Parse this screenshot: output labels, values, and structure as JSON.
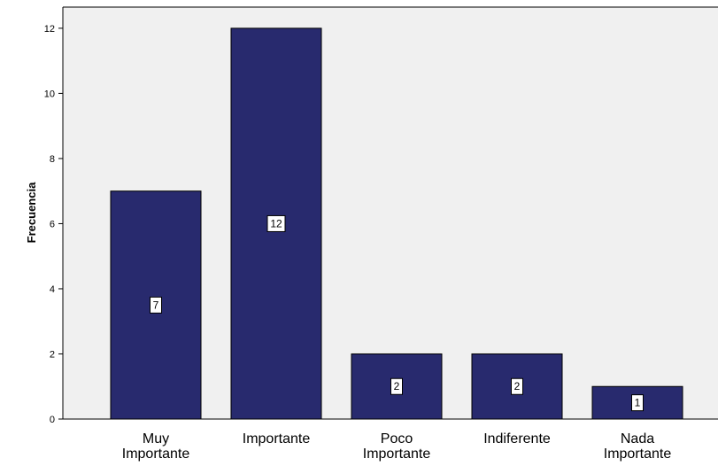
{
  "chart_data": {
    "type": "bar",
    "title": "",
    "xlabel": "",
    "ylabel": "Frecuencia",
    "categories": [
      [
        "Muy",
        "Importante"
      ],
      [
        "Importante"
      ],
      [
        "Poco",
        "Importante"
      ],
      [
        "Indiferente"
      ],
      [
        "Nada",
        "Importante"
      ]
    ],
    "values": [
      7,
      12,
      2,
      2,
      1
    ],
    "data_labels": [
      "7",
      "12",
      "2",
      "2",
      "1"
    ],
    "yticks": [
      "0",
      "2",
      "4",
      "6",
      "8",
      "10",
      "12"
    ],
    "ylim": [
      0,
      12.65
    ],
    "grid": false,
    "legend": "none",
    "colors": {
      "bar_fill": "#282a6e",
      "bar_stroke": "#000000",
      "plot_background": "#f0f0f0",
      "frame": "#000000",
      "label_box": "#ffffff"
    }
  }
}
